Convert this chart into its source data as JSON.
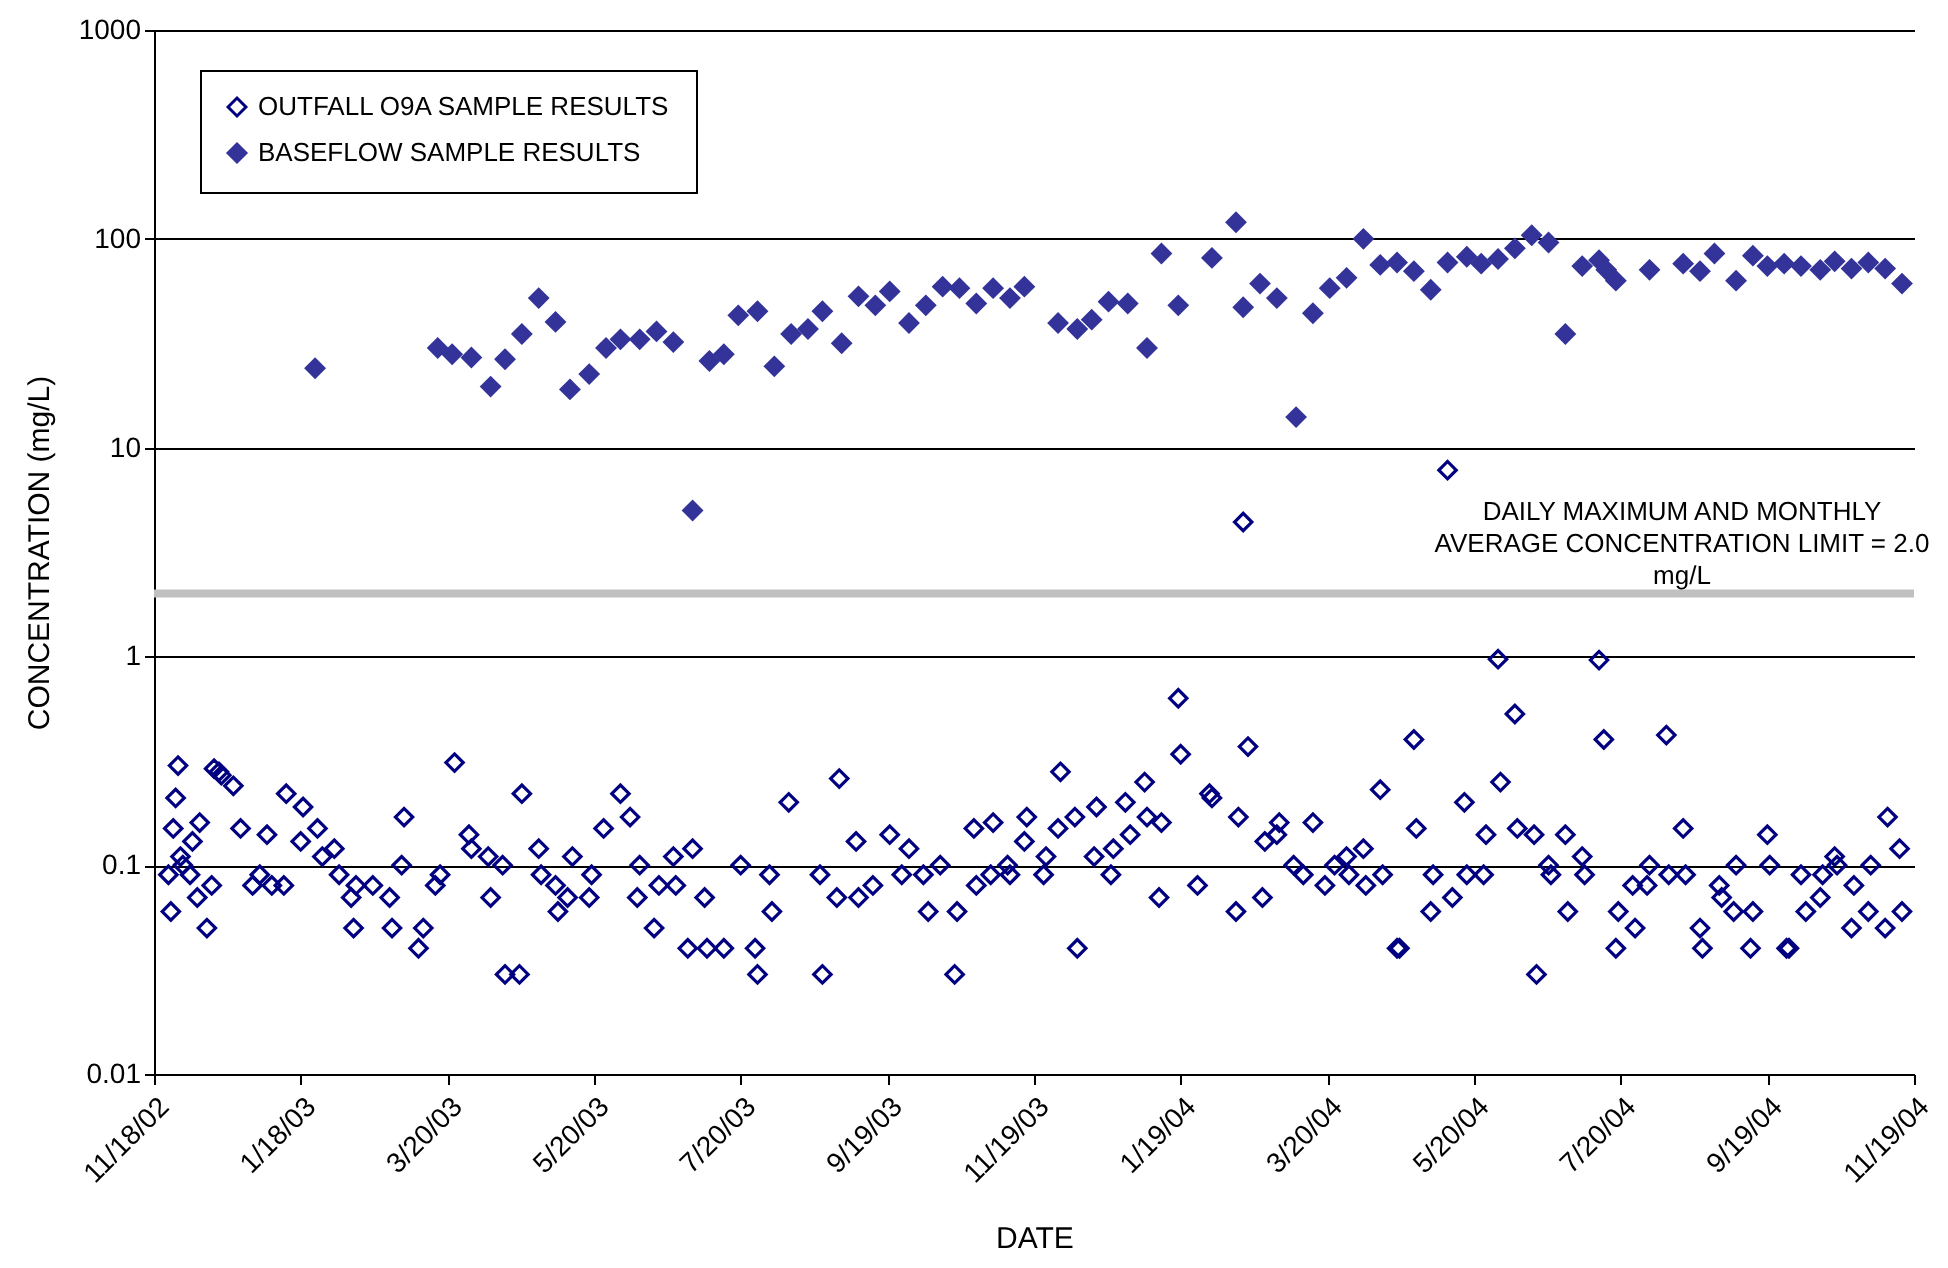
{
  "chart_data": {
    "type": "scatter",
    "xlabel": "DATE",
    "ylabel": "CONCENTRATION (mg/L)",
    "log": true,
    "grid": "y",
    "legend": "top left",
    "marker": "diamond",
    "xlim": [
      "2002-11-18",
      "2004-11-19"
    ],
    "xticks": [
      {
        "value": "2002-11-18",
        "label": "11/18/02"
      },
      {
        "value": "2003-01-18",
        "label": "1/18/03"
      },
      {
        "value": "2003-03-20",
        "label": "3/20/03"
      },
      {
        "value": "2003-05-20",
        "label": "5/20/03"
      },
      {
        "value": "2003-07-20",
        "label": "7/20/03"
      },
      {
        "value": "2003-09-19",
        "label": "9/19/03"
      },
      {
        "value": "2003-11-19",
        "label": "11/19/03"
      },
      {
        "value": "2004-01-19",
        "label": "1/19/04"
      },
      {
        "value": "2004-03-20",
        "label": "3/20/04"
      },
      {
        "value": "2004-05-20",
        "label": "5/20/04"
      },
      {
        "value": "2004-07-20",
        "label": "7/20/04"
      },
      {
        "value": "2004-09-19",
        "label": "9/19/04"
      },
      {
        "value": "2004-11-19",
        "label": "11/19/04"
      }
    ],
    "ylim": [
      0.01,
      1000
    ],
    "yticks": [
      0.01,
      0.1,
      1,
      10,
      100,
      1000
    ],
    "ref_lines": [
      {
        "axis": "y",
        "value": 2.0,
        "label": "DAILY MAXIMUM AND MONTHLY\nAVERAGE CONCENTRATION LIMIT = 2.0\nmg/L",
        "color": "#c0c0c0"
      }
    ],
    "series": [
      {
        "name": "OUTFALL O9A SAMPLE RESULTS",
        "color": "#000080",
        "x": [
          "2002-11-24",
          "2002-11-25",
          "2002-11-26",
          "2002-11-27",
          "2002-11-28",
          "2002-11-29",
          "2002-11-30",
          "2002-12-03",
          "2002-12-04",
          "2002-12-06",
          "2002-12-07",
          "2002-12-10",
          "2002-12-12",
          "2002-12-13",
          "2002-12-15",
          "2002-12-16",
          "2002-12-21",
          "2002-12-24",
          "2002-12-29",
          "2003-01-01",
          "2003-01-04",
          "2003-01-06",
          "2003-01-11",
          "2003-01-12",
          "2003-01-18",
          "2003-01-19",
          "2003-01-25",
          "2003-01-27",
          "2003-02-01",
          "2003-02-03",
          "2003-02-08",
          "2003-02-09",
          "2003-02-10",
          "2003-02-17",
          "2003-02-24",
          "2003-02-25",
          "2003-03-01",
          "2003-03-02",
          "2003-03-08",
          "2003-03-10",
          "2003-03-15",
          "2003-03-17",
          "2003-03-23",
          "2003-03-29",
          "2003-03-30",
          "2003-04-06",
          "2003-04-07",
          "2003-04-12",
          "2003-04-13",
          "2003-04-19",
          "2003-04-20",
          "2003-04-27",
          "2003-04-28",
          "2003-05-04",
          "2003-05-05",
          "2003-05-09",
          "2003-05-11",
          "2003-05-18",
          "2003-05-19",
          "2003-05-24",
          "2003-05-31",
          "2003-06-04",
          "2003-06-07",
          "2003-06-08",
          "2003-06-14",
          "2003-06-16",
          "2003-06-22",
          "2003-06-23",
          "2003-06-28",
          "2003-06-30",
          "2003-07-05",
          "2003-07-06",
          "2003-07-13",
          "2003-07-20",
          "2003-07-26",
          "2003-07-27",
          "2003-08-01",
          "2003-08-02",
          "2003-08-09",
          "2003-08-22",
          "2003-08-23",
          "2003-08-29",
          "2003-08-30",
          "2003-09-06",
          "2003-09-07",
          "2003-09-13",
          "2003-09-20",
          "2003-09-25",
          "2003-09-28",
          "2003-10-04",
          "2003-10-06",
          "2003-10-11",
          "2003-10-17",
          "2003-10-18",
          "2003-10-25",
          "2003-10-26",
          "2003-11-01",
          "2003-11-02",
          "2003-11-08",
          "2003-11-09",
          "2003-11-15",
          "2003-11-16",
          "2003-11-23",
          "2003-11-24",
          "2003-11-29",
          "2003-11-30",
          "2003-12-06",
          "2003-12-07",
          "2003-12-14",
          "2003-12-15",
          "2003-12-21",
          "2003-12-22",
          "2003-12-27",
          "2003-12-29",
          "2004-01-04",
          "2004-01-05",
          "2004-01-10",
          "2004-01-11",
          "2004-01-18",
          "2004-01-19",
          "2004-01-26",
          "2004-01-31",
          "2004-02-01",
          "2004-02-11",
          "2004-02-12",
          "2004-02-14",
          "2004-02-16",
          "2004-02-22",
          "2004-02-23",
          "2004-02-28",
          "2004-02-29",
          "2004-03-06",
          "2004-03-10",
          "2004-03-14",
          "2004-03-19",
          "2004-03-23",
          "2004-03-28",
          "2004-03-29",
          "2004-04-04",
          "2004-04-05",
          "2004-04-11",
          "2004-04-12",
          "2004-04-18",
          "2004-04-19",
          "2004-04-25",
          "2004-04-26",
          "2004-05-02",
          "2004-05-03",
          "2004-05-09",
          "2004-05-11",
          "2004-05-16",
          "2004-05-17",
          "2004-05-24",
          "2004-05-25",
          "2004-05-30",
          "2004-05-31",
          "2004-06-06",
          "2004-06-07",
          "2004-06-14",
          "2004-06-15",
          "2004-06-20",
          "2004-06-21",
          "2004-06-27",
          "2004-06-28",
          "2004-07-04",
          "2004-07-05",
          "2004-07-11",
          "2004-07-13",
          "2004-07-18",
          "2004-07-19",
          "2004-07-25",
          "2004-07-26",
          "2004-07-31",
          "2004-08-01",
          "2004-08-08",
          "2004-08-09",
          "2004-08-15",
          "2004-08-16",
          "2004-08-22",
          "2004-08-23",
          "2004-08-30",
          "2004-08-31",
          "2004-09-05",
          "2004-09-06",
          "2004-09-12",
          "2004-09-13",
          "2004-09-19",
          "2004-09-20",
          "2004-09-27",
          "2004-09-28",
          "2004-10-03",
          "2004-10-05",
          "2004-10-11",
          "2004-10-12",
          "2004-10-17",
          "2004-10-18",
          "2004-10-24",
          "2004-10-25",
          "2004-10-31",
          "2004-11-01",
          "2004-11-07",
          "2004-11-08",
          "2004-11-13",
          "2004-11-14"
        ],
        "values": [
          0.09,
          0.06,
          0.15,
          0.21,
          0.3,
          0.11,
          0.1,
          0.09,
          0.13,
          0.07,
          0.16,
          0.05,
          0.08,
          0.29,
          0.28,
          0.27,
          0.24,
          0.15,
          0.08,
          0.09,
          0.14,
          0.08,
          0.08,
          0.22,
          0.13,
          0.19,
          0.15,
          0.11,
          0.12,
          0.09,
          0.07,
          0.05,
          0.08,
          0.08,
          0.07,
          0.05,
          0.1,
          0.17,
          0.04,
          0.05,
          0.08,
          0.09,
          0.31,
          0.14,
          0.12,
          0.11,
          0.07,
          0.1,
          0.03,
          0.03,
          0.22,
          0.12,
          0.09,
          0.08,
          0.06,
          0.07,
          0.11,
          0.07,
          0.09,
          0.15,
          0.22,
          0.17,
          0.07,
          0.1,
          0.05,
          0.08,
          0.11,
          0.08,
          0.04,
          0.12,
          0.07,
          0.04,
          0.04,
          0.1,
          0.04,
          0.03,
          0.09,
          0.06,
          0.2,
          0.09,
          0.03,
          0.07,
          0.26,
          0.13,
          0.07,
          0.08,
          0.14,
          0.09,
          0.12,
          0.09,
          0.06,
          0.1,
          0.03,
          0.06,
          0.15,
          0.08,
          0.09,
          0.16,
          0.1,
          0.09,
          0.13,
          0.17,
          0.09,
          0.11,
          0.15,
          0.28,
          0.17,
          0.04,
          0.11,
          0.19,
          0.09,
          0.12,
          0.2,
          0.14,
          0.25,
          0.17,
          0.07,
          0.16,
          0.63,
          0.34,
          0.08,
          0.22,
          0.21,
          0.06,
          0.17,
          4.4,
          0.37,
          0.07,
          0.13,
          0.14,
          0.16,
          0.1,
          0.09,
          0.16,
          0.08,
          0.1,
          0.11,
          0.09,
          0.12,
          0.08,
          0.23,
          0.09,
          0.04,
          0.04,
          0.4,
          0.15,
          0.06,
          0.09,
          7.8,
          0.07,
          0.2,
          0.09,
          0.09,
          0.14,
          0.97,
          0.25,
          0.53,
          0.15,
          0.14,
          0.03,
          0.1,
          0.09,
          0.14,
          0.06,
          0.11,
          0.09,
          0.96,
          0.4,
          0.04,
          0.06,
          0.08,
          0.05,
          0.08,
          0.1,
          0.42,
          0.09,
          0.15,
          0.09,
          0.05,
          0.04,
          0.08,
          0.07,
          0.06,
          0.1,
          0.04,
          0.06,
          0.14,
          0.1,
          0.04,
          0.04,
          0.09,
          0.06,
          0.07,
          0.09,
          0.11,
          0.1,
          0.05,
          0.08,
          0.06,
          0.1,
          0.05,
          0.17,
          0.12,
          0.06
        ]
      },
      {
        "name": "BASEFLOW SAMPLE RESULTS",
        "color": "#333399",
        "x": [
          "2003-01-24",
          "2003-03-16",
          "2003-03-22",
          "2003-03-30",
          "2003-04-07",
          "2003-04-13",
          "2003-04-20",
          "2003-04-27",
          "2003-05-04",
          "2003-05-10",
          "2003-05-18",
          "2003-05-25",
          "2003-05-31",
          "2003-06-08",
          "2003-06-15",
          "2003-06-22",
          "2003-06-30",
          "2003-07-07",
          "2003-07-13",
          "2003-07-19",
          "2003-07-27",
          "2003-08-03",
          "2003-08-10",
          "2003-08-17",
          "2003-08-23",
          "2003-08-31",
          "2003-09-07",
          "2003-09-14",
          "2003-09-20",
          "2003-09-28",
          "2003-10-05",
          "2003-10-12",
          "2003-10-19",
          "2003-10-26",
          "2003-11-02",
          "2003-11-09",
          "2003-11-15",
          "2003-11-29",
          "2003-12-07",
          "2003-12-13",
          "2003-12-20",
          "2003-12-28",
          "2004-01-05",
          "2004-01-11",
          "2004-01-18",
          "2004-02-01",
          "2004-02-11",
          "2004-02-14",
          "2004-02-21",
          "2004-02-28",
          "2004-03-07",
          "2004-03-14",
          "2004-03-21",
          "2004-03-28",
          "2004-04-04",
          "2004-04-11",
          "2004-04-18",
          "2004-04-25",
          "2004-05-02",
          "2004-05-09",
          "2004-05-17",
          "2004-05-23",
          "2004-05-30",
          "2004-06-06",
          "2004-06-13",
          "2004-06-20",
          "2004-06-27",
          "2004-07-04",
          "2004-07-11",
          "2004-07-14",
          "2004-07-18",
          "2004-08-01",
          "2004-08-15",
          "2004-08-22",
          "2004-08-28",
          "2004-09-06",
          "2004-09-13",
          "2004-09-19",
          "2004-09-26",
          "2004-10-03",
          "2004-10-11",
          "2004-10-17",
          "2004-10-24",
          "2004-10-31",
          "2004-11-07",
          "2004-11-14"
        ],
        "values": [
          24,
          30,
          28,
          27,
          19.6,
          26.5,
          35,
          52,
          40,
          19,
          22.5,
          30,
          33,
          33,
          36,
          32,
          5,
          26,
          28,
          43,
          45,
          24.5,
          35,
          37,
          45,
          31.6,
          53,
          48,
          56,
          39.5,
          48,
          59,
          58,
          49,
          58,
          52,
          59,
          39.5,
          37,
          41,
          50,
          49,
          30,
          85,
          48,
          81,
          120,
          47,
          61,
          52,
          14,
          44,
          58,
          65,
          100,
          75,
          77,
          70,
          57,
          77,
          82,
          76,
          80,
          90,
          104,
          96,
          35,
          74,
          79,
          71,
          63,
          71,
          76,
          70,
          85,
          63,
          83,
          74,
          76,
          74,
          71,
          78,
          72,
          77,
          72,
          61
        ]
      }
    ]
  }
}
